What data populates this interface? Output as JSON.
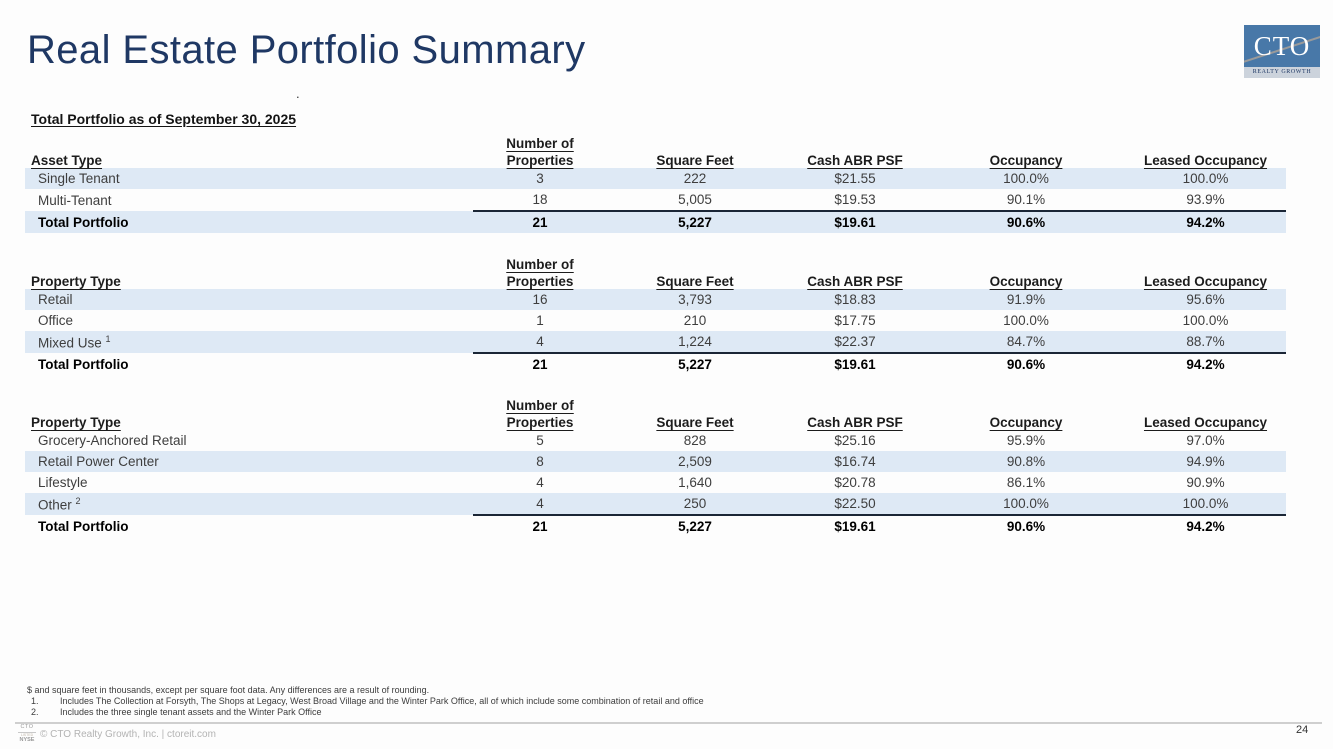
{
  "slide": {
    "title": "Real Estate Portfolio Summary",
    "section_heading": "Total Portfolio as of September 30, 2025",
    "stray_dot": ".",
    "page_number": "24"
  },
  "logo": {
    "text": "CTO",
    "subtext": "REALTY GROWTH"
  },
  "columns": {
    "properties_top": "Number of",
    "properties_bottom": "Properties",
    "square_feet": "Square Feet",
    "cash_abr": "Cash ABR PSF",
    "occupancy": "Occupancy",
    "leased": "Leased Occupancy"
  },
  "tables": [
    {
      "label_header": "Asset Type",
      "rows": [
        {
          "label": "Single Tenant",
          "sup": "",
          "values": [
            "3",
            "222",
            "$21.55",
            "100.0%",
            "100.0%"
          ],
          "shaded": true,
          "total": false
        },
        {
          "label": "Multi-Tenant",
          "sup": "",
          "values": [
            "18",
            "5,005",
            "$19.53",
            "90.1%",
            "93.9%"
          ],
          "shaded": false,
          "total": false
        },
        {
          "label": "Total Portfolio",
          "sup": "",
          "values": [
            "21",
            "5,227",
            "$19.61",
            "90.6%",
            "94.2%"
          ],
          "shaded": true,
          "total": true
        }
      ]
    },
    {
      "label_header": "Property Type",
      "rows": [
        {
          "label": "Retail",
          "sup": "",
          "values": [
            "16",
            "3,793",
            "$18.83",
            "91.9%",
            "95.6%"
          ],
          "shaded": true,
          "total": false
        },
        {
          "label": "Office",
          "sup": "",
          "values": [
            "1",
            "210",
            "$17.75",
            "100.0%",
            "100.0%"
          ],
          "shaded": false,
          "total": false
        },
        {
          "label": "Mixed Use",
          "sup": "1",
          "values": [
            "4",
            "1,224",
            "$22.37",
            "84.7%",
            "88.7%"
          ],
          "shaded": true,
          "total": false
        },
        {
          "label": "Total Portfolio",
          "sup": "",
          "values": [
            "21",
            "5,227",
            "$19.61",
            "90.6%",
            "94.2%"
          ],
          "shaded": false,
          "total": true
        }
      ]
    },
    {
      "label_header": "Property Type",
      "rows": [
        {
          "label": "Grocery-Anchored Retail",
          "sup": "",
          "values": [
            "5",
            "828",
            "$25.16",
            "95.9%",
            "97.0%"
          ],
          "shaded": false,
          "total": false
        },
        {
          "label": "Retail Power Center",
          "sup": "",
          "values": [
            "8",
            "2,509",
            "$16.74",
            "90.8%",
            "94.9%"
          ],
          "shaded": true,
          "total": false
        },
        {
          "label": "Lifestyle",
          "sup": "",
          "values": [
            "4",
            "1,640",
            "$20.78",
            "86.1%",
            "90.9%"
          ],
          "shaded": false,
          "total": false
        },
        {
          "label": "Other",
          "sup": "2",
          "values": [
            "4",
            "250",
            "$22.50",
            "100.0%",
            "100.0%"
          ],
          "shaded": true,
          "total": false
        },
        {
          "label": "Total Portfolio",
          "sup": "",
          "values": [
            "21",
            "5,227",
            "$19.61",
            "90.6%",
            "94.2%"
          ],
          "shaded": false,
          "total": true
        }
      ]
    }
  ],
  "footnotes": {
    "general": "$ and square feet in thousands, except per square foot data. Any differences are a result of rounding.",
    "items": [
      {
        "num": "1.",
        "text": "Includes The Collection at Forsyth, The Shops at Legacy, West Broad Village and the Winter Park Office, all of which include some combination of retail and office"
      },
      {
        "num": "2.",
        "text": "Includes the three single tenant assets and the Winter Park Office"
      }
    ]
  },
  "footer": {
    "badge_top": "CTO",
    "badge_mid": "LISTED",
    "badge_bottom": "NYSE",
    "copyright": "© CTO Realty Growth, Inc. | ctoreit.com"
  },
  "colors": {
    "title_navy": "#1F3864",
    "row_band_blue": "#DEE9F5",
    "total_border": "#1B2636",
    "logo_blue": "#4878A8"
  }
}
